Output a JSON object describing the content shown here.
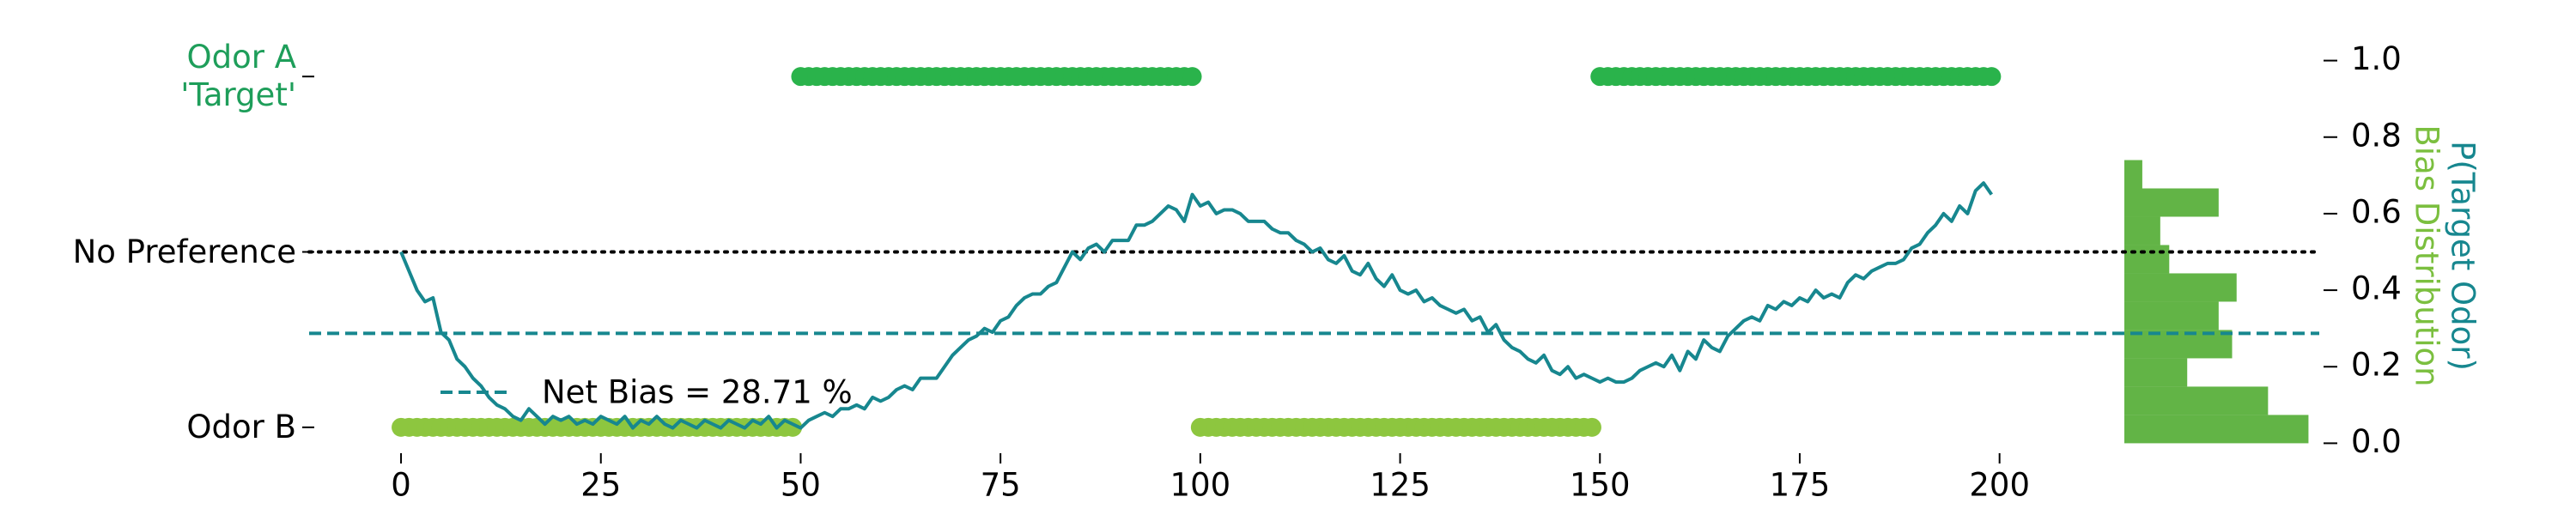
{
  "chart_data": {
    "type": "line",
    "x": [
      0,
      1,
      2,
      3,
      4,
      5,
      6,
      7,
      8,
      9,
      10,
      11,
      12,
      13,
      14,
      15,
      16,
      17,
      18,
      19,
      20,
      21,
      22,
      23,
      24,
      25,
      26,
      27,
      28,
      29,
      30,
      31,
      32,
      33,
      34,
      35,
      36,
      37,
      38,
      39,
      40,
      41,
      42,
      43,
      44,
      45,
      46,
      47,
      48,
      49,
      50,
      51,
      52,
      53,
      54,
      55,
      56,
      57,
      58,
      59,
      60,
      61,
      62,
      63,
      64,
      65,
      66,
      67,
      68,
      69,
      70,
      71,
      72,
      73,
      74,
      75,
      76,
      77,
      78,
      79,
      80,
      81,
      82,
      83,
      84,
      85,
      86,
      87,
      88,
      89,
      90,
      91,
      92,
      93,
      94,
      95,
      96,
      97,
      98,
      99,
      100,
      101,
      102,
      103,
      104,
      105,
      106,
      107,
      108,
      109,
      110,
      111,
      112,
      113,
      114,
      115,
      116,
      117,
      118,
      119,
      120,
      121,
      122,
      123,
      124,
      125,
      126,
      127,
      128,
      129,
      130,
      131,
      132,
      133,
      134,
      135,
      136,
      137,
      138,
      139,
      140,
      141,
      142,
      143,
      144,
      145,
      146,
      147,
      148,
      149,
      150,
      151,
      152,
      153,
      154,
      155,
      156,
      157,
      158,
      159,
      160,
      161,
      162,
      163,
      164,
      165,
      166,
      167,
      168,
      169,
      170,
      171,
      172,
      173,
      174,
      175,
      176,
      177,
      178,
      179,
      180,
      181,
      182,
      183,
      184,
      185,
      186,
      187,
      188,
      189,
      190,
      191,
      192,
      193,
      194,
      195,
      196,
      197,
      198,
      199
    ],
    "series": [
      {
        "color": "#17878f",
        "axis": "y2",
        "values": [
          0.5,
          0.45,
          0.4,
          0.37,
          0.38,
          0.29,
          0.27,
          0.22,
          0.2,
          0.17,
          0.15,
          0.12,
          0.1,
          0.09,
          0.07,
          0.06,
          0.09,
          0.07,
          0.05,
          0.07,
          0.06,
          0.07,
          0.05,
          0.06,
          0.05,
          0.07,
          0.06,
          0.05,
          0.07,
          0.04,
          0.06,
          0.05,
          0.07,
          0.05,
          0.04,
          0.06,
          0.05,
          0.04,
          0.06,
          0.05,
          0.04,
          0.06,
          0.05,
          0.04,
          0.06,
          0.05,
          0.07,
          0.04,
          0.06,
          0.05,
          0.04,
          0.06,
          0.07,
          0.08,
          0.07,
          0.09,
          0.09,
          0.1,
          0.09,
          0.12,
          0.11,
          0.12,
          0.14,
          0.15,
          0.14,
          0.17,
          0.17,
          0.17,
          0.2,
          0.23,
          0.25,
          0.27,
          0.28,
          0.3,
          0.29,
          0.32,
          0.33,
          0.36,
          0.38,
          0.39,
          0.39,
          0.41,
          0.42,
          0.46,
          0.5,
          0.48,
          0.51,
          0.52,
          0.5,
          0.53,
          0.53,
          0.53,
          0.57,
          0.57,
          0.58,
          0.6,
          0.62,
          0.61,
          0.58,
          0.65,
          0.62,
          0.63,
          0.6,
          0.61,
          0.61,
          0.6,
          0.58,
          0.58,
          0.58,
          0.56,
          0.55,
          0.55,
          0.53,
          0.52,
          0.5,
          0.51,
          0.48,
          0.47,
          0.49,
          0.45,
          0.44,
          0.47,
          0.43,
          0.41,
          0.44,
          0.4,
          0.39,
          0.4,
          0.37,
          0.38,
          0.36,
          0.35,
          0.34,
          0.35,
          0.32,
          0.33,
          0.29,
          0.31,
          0.27,
          0.25,
          0.24,
          0.22,
          0.21,
          0.23,
          0.19,
          0.18,
          0.2,
          0.17,
          0.18,
          0.17,
          0.16,
          0.17,
          0.16,
          0.16,
          0.17,
          0.19,
          0.2,
          0.21,
          0.2,
          0.23,
          0.19,
          0.24,
          0.22,
          0.27,
          0.25,
          0.24,
          0.28,
          0.3,
          0.32,
          0.33,
          0.32,
          0.36,
          0.35,
          0.37,
          0.36,
          0.38,
          0.37,
          0.4,
          0.38,
          0.39,
          0.38,
          0.42,
          0.44,
          0.43,
          0.45,
          0.46,
          0.47,
          0.47,
          0.48,
          0.51,
          0.52,
          0.55,
          0.57,
          0.6,
          0.58,
          0.62,
          0.6,
          0.66,
          0.68,
          0.65
        ]
      }
    ],
    "odor_trials": {
      "color_a": "#2ab34b",
      "color_b": "#8dc63f",
      "values": [
        0,
        0,
        0,
        0,
        0,
        0,
        0,
        0,
        0,
        0,
        0,
        0,
        0,
        0,
        0,
        0,
        0,
        0,
        0,
        0,
        0,
        0,
        0,
        0,
        0,
        0,
        0,
        0,
        0,
        0,
        0,
        0,
        0,
        0,
        0,
        0,
        0,
        0,
        0,
        0,
        0,
        0,
        0,
        0,
        0,
        0,
        0,
        0,
        0,
        0,
        1,
        1,
        1,
        1,
        1,
        1,
        1,
        1,
        1,
        1,
        1,
        1,
        1,
        1,
        1,
        1,
        1,
        1,
        1,
        1,
        1,
        1,
        1,
        1,
        1,
        1,
        1,
        1,
        1,
        1,
        1,
        1,
        1,
        1,
        1,
        1,
        1,
        1,
        1,
        1,
        1,
        1,
        1,
        1,
        1,
        1,
        1,
        1,
        1,
        1,
        0,
        0,
        0,
        0,
        0,
        0,
        0,
        0,
        0,
        0,
        0,
        0,
        0,
        0,
        0,
        0,
        0,
        0,
        0,
        0,
        0,
        0,
        0,
        0,
        0,
        0,
        0,
        0,
        0,
        0,
        0,
        0,
        0,
        0,
        0,
        0,
        0,
        0,
        0,
        0,
        0,
        0,
        0,
        0,
        0,
        0,
        0,
        0,
        0,
        0,
        1,
        1,
        1,
        1,
        1,
        1,
        1,
        1,
        1,
        1,
        1,
        1,
        1,
        1,
        1,
        1,
        1,
        1,
        1,
        1,
        1,
        1,
        1,
        1,
        1,
        1,
        1,
        1,
        1,
        1,
        1,
        1,
        1,
        1,
        1,
        1,
        1,
        1,
        1,
        1,
        1,
        1,
        1,
        1,
        1,
        1,
        1,
        1,
        1,
        1
      ]
    },
    "net_bias": {
      "name": "Net Bias = 28.71 %",
      "value": 0.2871,
      "color": "#17878f"
    },
    "histogram": {
      "color": "#62b446",
      "bins": [
        0,
        0.074,
        0.148,
        0.222,
        0.296,
        0.37,
        0.444,
        0.518,
        0.592,
        0.666,
        0.74
      ],
      "counts": [
        41,
        32,
        14,
        24,
        21,
        25,
        10,
        8,
        21,
        4
      ]
    },
    "xlim": [
      -11.5,
      240
    ],
    "xticks": [
      0,
      25,
      50,
      75,
      100,
      125,
      150,
      175,
      200
    ],
    "ylim": [
      -0.0909,
      1.0909
    ],
    "yticks": [
      {
        "value": 0,
        "label": "Odor B"
      },
      {
        "value": 0.5,
        "label": "No Preference"
      },
      {
        "value": 1,
        "label": "Odor A\n'Target'"
      }
    ],
    "ytick_colors": [
      "#000000",
      "#000000",
      "#1e9e5a"
    ],
    "y2lim": [
      -0.0417,
      1.0417
    ],
    "y2ticks": [
      {
        "value": 0,
        "label": "0.0"
      },
      0.2,
      0.4,
      0.6,
      0.8,
      {
        "value": 1,
        "label": "1.0"
      }
    ],
    "y2label": "P(Target Odor)",
    "y2label_color": "#17878f",
    "y2label_secondary": "Bias Distribution",
    "y2label_secondary_color": "#7bbf3f"
  }
}
